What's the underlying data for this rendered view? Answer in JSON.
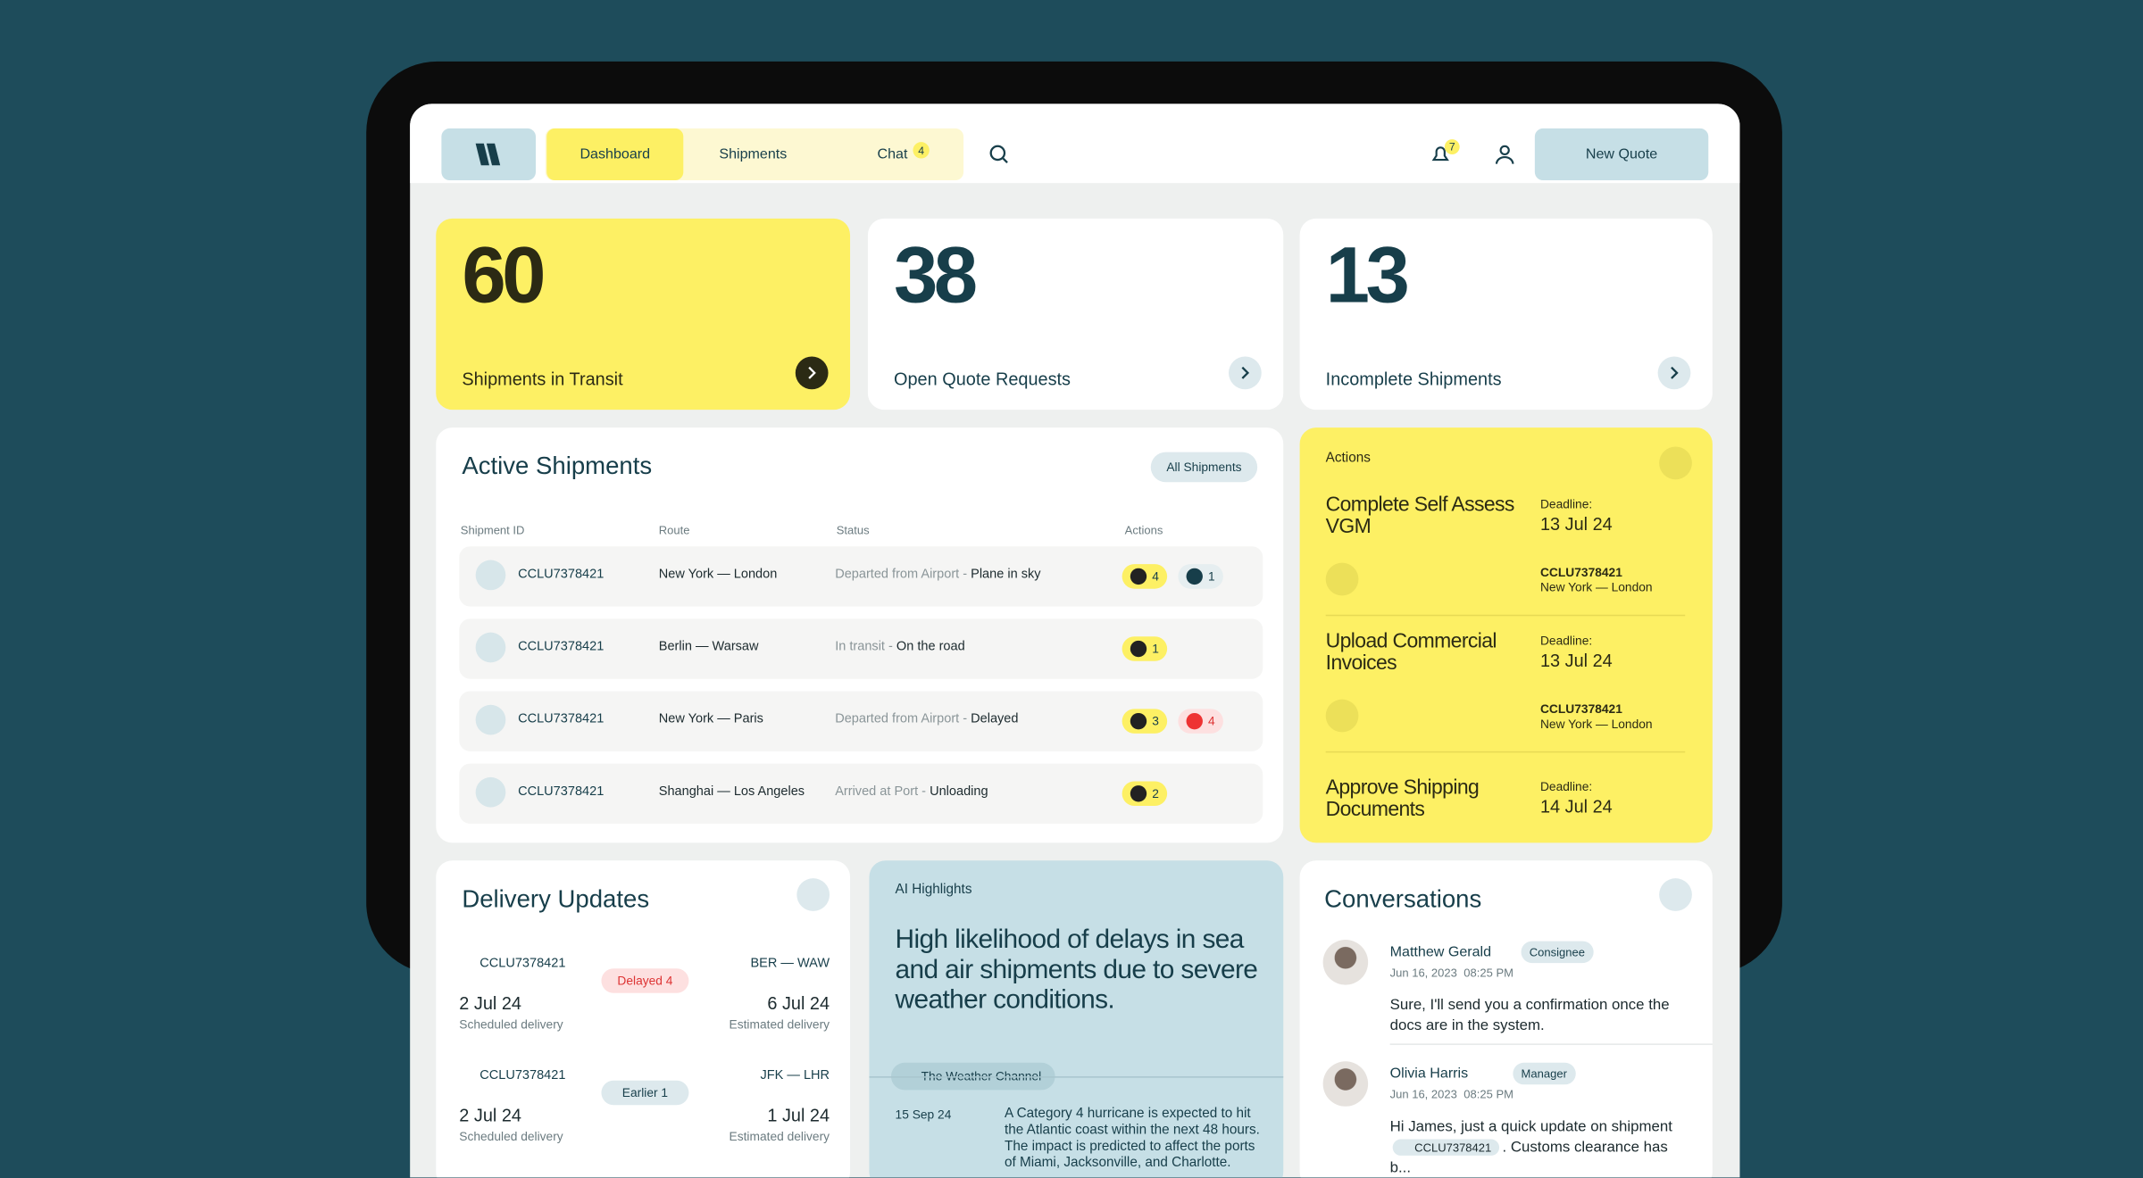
{
  "nav": {
    "tabs": [
      "Dashboard",
      "Shipments",
      "Chat"
    ],
    "chat_badge": "4",
    "notification_badge": "7",
    "button": "New Quote"
  },
  "stats": [
    {
      "value": "60",
      "label": "Shipments in Transit"
    },
    {
      "value": "38",
      "label": "Open Quote Requests"
    },
    {
      "value": "13",
      "label": "Incomplete Shipments"
    }
  ],
  "active_shipments": {
    "title": "Active Shipments",
    "button": "All Shipments",
    "columns": [
      "Shipment ID",
      "Route",
      "Status",
      "Actions"
    ],
    "rows": [
      {
        "id": "CCLU7378421",
        "route": "New York — London",
        "status_prefix": "Departed from Airport - ",
        "status": "Plane in sky",
        "alerts": "4",
        "docs": "1"
      },
      {
        "id": "CCLU7378421",
        "route": "Berlin — Warsaw",
        "status_prefix": "In transit - ",
        "status": "On the road",
        "alerts": "1"
      },
      {
        "id": "CCLU7378421",
        "route": "New York — Paris",
        "status_prefix": "Departed from Airport - ",
        "status": "Delayed",
        "alerts": "3",
        "docs": "4"
      },
      {
        "id": "CCLU7378421",
        "route": "Shanghai — Los Angeles",
        "status_prefix": "Arrived at Port - ",
        "status": "Unloading",
        "alerts": "2"
      }
    ]
  },
  "actions": {
    "title": "Actions",
    "items": [
      {
        "title": "Complete Self Assess VGM",
        "deadline_label": "Deadline:",
        "deadline": "13 Jul 24",
        "ref": "CCLU7378421",
        "route": "New York — London"
      },
      {
        "title": "Upload Commercial Invoices",
        "deadline_label": "Deadline:",
        "deadline": "13 Jul 24",
        "ref": "CCLU7378421",
        "route": "New York — London"
      },
      {
        "title": "Approve Shipping Documents",
        "deadline_label": "Deadline:",
        "deadline": "14 Jul 24"
      }
    ]
  },
  "delivery": {
    "title": "Delivery Updates",
    "items": [
      {
        "id": "CCLU7378421",
        "badge": "Delayed 4",
        "route": "BER — WAW",
        "scheduled": "2 Jul 24",
        "scheduled_label": "Scheduled delivery",
        "estimated": "6 Jul 24",
        "estimated_label": "Estimated delivery"
      },
      {
        "id": "CCLU7378421",
        "badge": "Earlier 1",
        "route": "JFK — LHR",
        "scheduled": "2 Jul 24",
        "scheduled_label": "Scheduled delivery",
        "estimated": "1 Jul 24",
        "estimated_label": "Estimated delivery"
      }
    ]
  },
  "ai": {
    "label": "AI Highlights",
    "headline": "High likelihood of delays in sea and air shipments due to severe weather conditions.",
    "source": "The Weather Channel",
    "date": "15 Sep 24",
    "text": "A Category 4 hurricane is expected to hit the Atlantic coast within the next 48 hours. The impact is predicted to affect the ports of Miami, Jacksonville, and Charlotte."
  },
  "conversations": {
    "title": "Conversations",
    "messages": [
      {
        "name": "Matthew Gerald",
        "role": "Consignee",
        "date": "Jun 16, 2023",
        "time": "08:25 PM",
        "text": "Sure, I'll send you a confirmation once the docs are in the system."
      },
      {
        "name": "Olivia Harris",
        "role": "Manager",
        "date": "Jun 16, 2023",
        "time": "08:25 PM",
        "text": "Hi James, just a quick update on shipment",
        "chip": "CCLU7378421",
        "text_end": ". Customs clearance has b..."
      }
    ]
  }
}
